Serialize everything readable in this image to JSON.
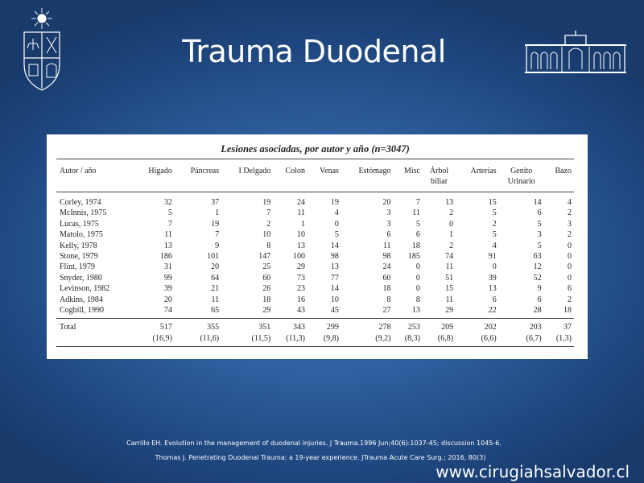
{
  "slide": {
    "title": "Trauma Duodenal",
    "website": "www.cirugiahsalvador.cl",
    "references": [
      "Carrillo EH. Evolution in the management of duodenal injuries. J Trauma.1996 Jun;40(6):1037-45; discussion 1045-6.",
      "Thomas J. Penetrating Duodenal Trauma: a 19-year experience. JTrauma Acute Care Surg.; 2016, 80(3)"
    ]
  },
  "table": {
    "caption": "Lesiones asociadas, por autor y año (n=3047)",
    "headers": [
      "Autor / año",
      "Hígado",
      "Páncreas",
      "I Delgado",
      "Colon",
      "Venas",
      "Estómago",
      "Misc",
      "Árbol\nbiliar",
      "Arterias",
      "Genito\nUrinario",
      "Bazo"
    ],
    "rows": [
      [
        "Corley, 1974",
        "32",
        "37",
        "19",
        "24",
        "19",
        "20",
        "7",
        "13",
        "15",
        "14",
        "4"
      ],
      [
        "McInnis, 1975",
        "5",
        "1",
        "7",
        "11",
        "4",
        "3",
        "11",
        "2",
        "5",
        "6",
        "2"
      ],
      [
        "Lucas, 1975",
        "7",
        "19",
        "2",
        "1",
        "0",
        "3",
        "5",
        "0",
        "2",
        "5",
        "3"
      ],
      [
        "Matolo, 1975",
        "11",
        "7",
        "10",
        "10",
        "5",
        "6",
        "6",
        "1",
        "5",
        "3",
        "2"
      ],
      [
        "Kelly, 1978",
        "13",
        "9",
        "8",
        "13",
        "14",
        "11",
        "18",
        "2",
        "4",
        "5",
        "0"
      ],
      [
        "Stone, 1979",
        "186",
        "101",
        "147",
        "100",
        "98",
        "98",
        "185",
        "74",
        "91",
        "63",
        "0"
      ],
      [
        "Flint, 1979",
        "31",
        "20",
        "25",
        "29",
        "13",
        "24",
        "0",
        "11",
        "0",
        "12",
        "0"
      ],
      [
        "Snyder, 1980",
        "99",
        "64",
        "60",
        "73",
        "77",
        "60",
        "0",
        "51",
        "39",
        "52",
        "0"
      ],
      [
        "Levinson, 1982",
        "39",
        "21",
        "26",
        "23",
        "14",
        "18",
        "0",
        "15",
        "13",
        "9",
        "6"
      ],
      [
        "Adkins, 1984",
        "20",
        "11",
        "18",
        "16",
        "10",
        "8",
        "8",
        "11",
        "6",
        "6",
        "2"
      ],
      [
        "Cogbill, 1990",
        "74",
        "65",
        "29",
        "43",
        "45",
        "27",
        "13",
        "29",
        "22",
        "28",
        "18"
      ]
    ],
    "total_label": "Total",
    "totals": [
      "517",
      "355",
      "351",
      "343",
      "299",
      "278",
      "253",
      "209",
      "202",
      "203",
      "37"
    ],
    "percentages": [
      "(16,9)",
      "(11,6)",
      "(11,5)",
      "(11,3)",
      "(9,8)",
      "(9,2)",
      "(8,3)",
      "(6,8)",
      "(6,6)",
      "(6,7)",
      "(1,3)"
    ]
  },
  "colors": {
    "background": "#2f5f9f",
    "panel": "#ffffff",
    "text_light": "#ffffff"
  },
  "icons": {
    "left_logo": "university-crest-icon",
    "right_logo": "hospital-building-icon"
  }
}
